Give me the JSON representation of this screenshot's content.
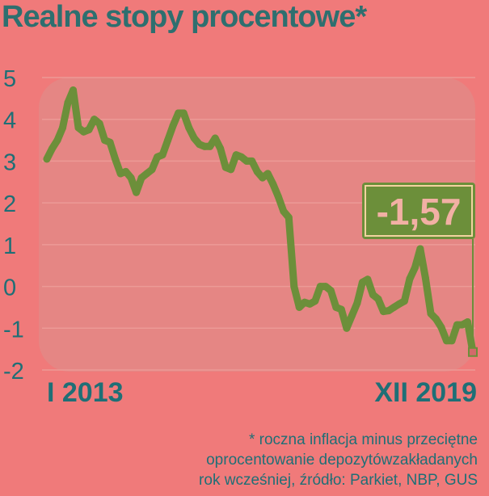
{
  "title": "Realne stopy procentowe*",
  "footnote": {
    "line1": "* roczna inflacja minus przeciętne",
    "line2": "oprocentowanie depozytówzakładanych",
    "line3": "rok wcześniej, źródło: Parkiet, NBP, GUS"
  },
  "colors": {
    "background": "#f07a7a",
    "plot_panel": "#e58684",
    "line": "#6c8f3a",
    "title": "#2e6f6f",
    "axis_text": "#1f6f76",
    "callout_bg": "#6c8f3a",
    "callout_text": "#f2b0a4"
  },
  "chart_data": {
    "type": "line",
    "title": "Realne stopy procentowe*",
    "x_start_label": "I 2013",
    "x_end_label": "XII 2019",
    "ylim": [
      -2,
      5
    ],
    "yticks": [
      "5",
      "4",
      "3",
      "2",
      "1",
      "0",
      "-1",
      "-2"
    ],
    "ytick_values": [
      5,
      4,
      3,
      2,
      1,
      0,
      -1,
      -2
    ],
    "grid": true,
    "annotation": {
      "text": "-1,57",
      "value": -1.57
    },
    "series": [
      {
        "values": [
          3.05,
          3.3,
          3.5,
          3.8,
          4.4,
          4.7,
          3.8,
          3.7,
          3.75,
          4.0,
          3.9,
          3.5,
          3.45,
          3.05,
          2.7,
          2.75,
          2.6,
          2.25,
          2.6,
          2.7,
          2.8,
          3.1,
          3.15,
          3.5,
          3.85,
          4.15,
          4.15,
          3.8,
          3.55,
          3.4,
          3.35,
          3.35,
          3.55,
          3.3,
          2.85,
          2.8,
          3.15,
          3.1,
          3.0,
          3.0,
          2.75,
          2.6,
          2.7,
          2.45,
          2.15,
          1.8,
          1.65,
          0.0,
          -0.5,
          -0.38,
          -0.42,
          -0.35,
          0.0,
          0.0,
          -0.1,
          -0.5,
          -0.55,
          -1.0,
          -0.7,
          -0.4,
          0.1,
          0.17,
          -0.2,
          -0.3,
          -0.6,
          -0.58,
          -0.5,
          -0.42,
          -0.35,
          0.18,
          0.45,
          0.9,
          0.2,
          -0.65,
          -0.78,
          -0.98,
          -1.3,
          -1.3,
          -0.92,
          -0.92,
          -0.85,
          -1.57
        ]
      }
    ]
  }
}
